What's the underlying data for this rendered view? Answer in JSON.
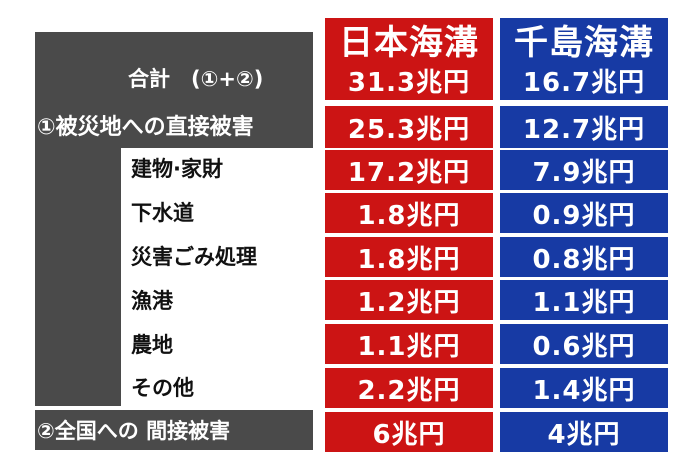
{
  "headers": {
    "japan_trench": "日本海溝",
    "kuril_trench": "千島海溝"
  },
  "rows": [
    {
      "label": "合計　(①+②)",
      "japan": "31.3兆円",
      "kuril": "16.7兆円"
    },
    {
      "label": "①被災地への直接被害",
      "japan": "25.3兆円",
      "kuril": "12.7兆円"
    },
    {
      "label": "建物·家財",
      "japan": "17.2兆円",
      "kuril": "7.9兆円"
    },
    {
      "label": "下水道",
      "japan": "1.8兆円",
      "kuril": "0.9兆円"
    },
    {
      "label": "災害ごみ処理",
      "japan": "1.8兆円",
      "kuril": "0.8兆円"
    },
    {
      "label": "漁港",
      "japan": "1.2兆円",
      "kuril": "1.1兆円"
    },
    {
      "label": "農地",
      "japan": "1.1兆円",
      "kuril": "0.6兆円"
    },
    {
      "label": "その他",
      "japan": "2.2兆円",
      "kuril": "1.4兆円"
    },
    {
      "label": "②全国への 間接被害",
      "japan": "6兆円",
      "kuril": "4兆円"
    }
  ],
  "colors": {
    "japan": "#cc1414",
    "kuril": "#173aa4",
    "label_bg": "#4a4a4a"
  }
}
